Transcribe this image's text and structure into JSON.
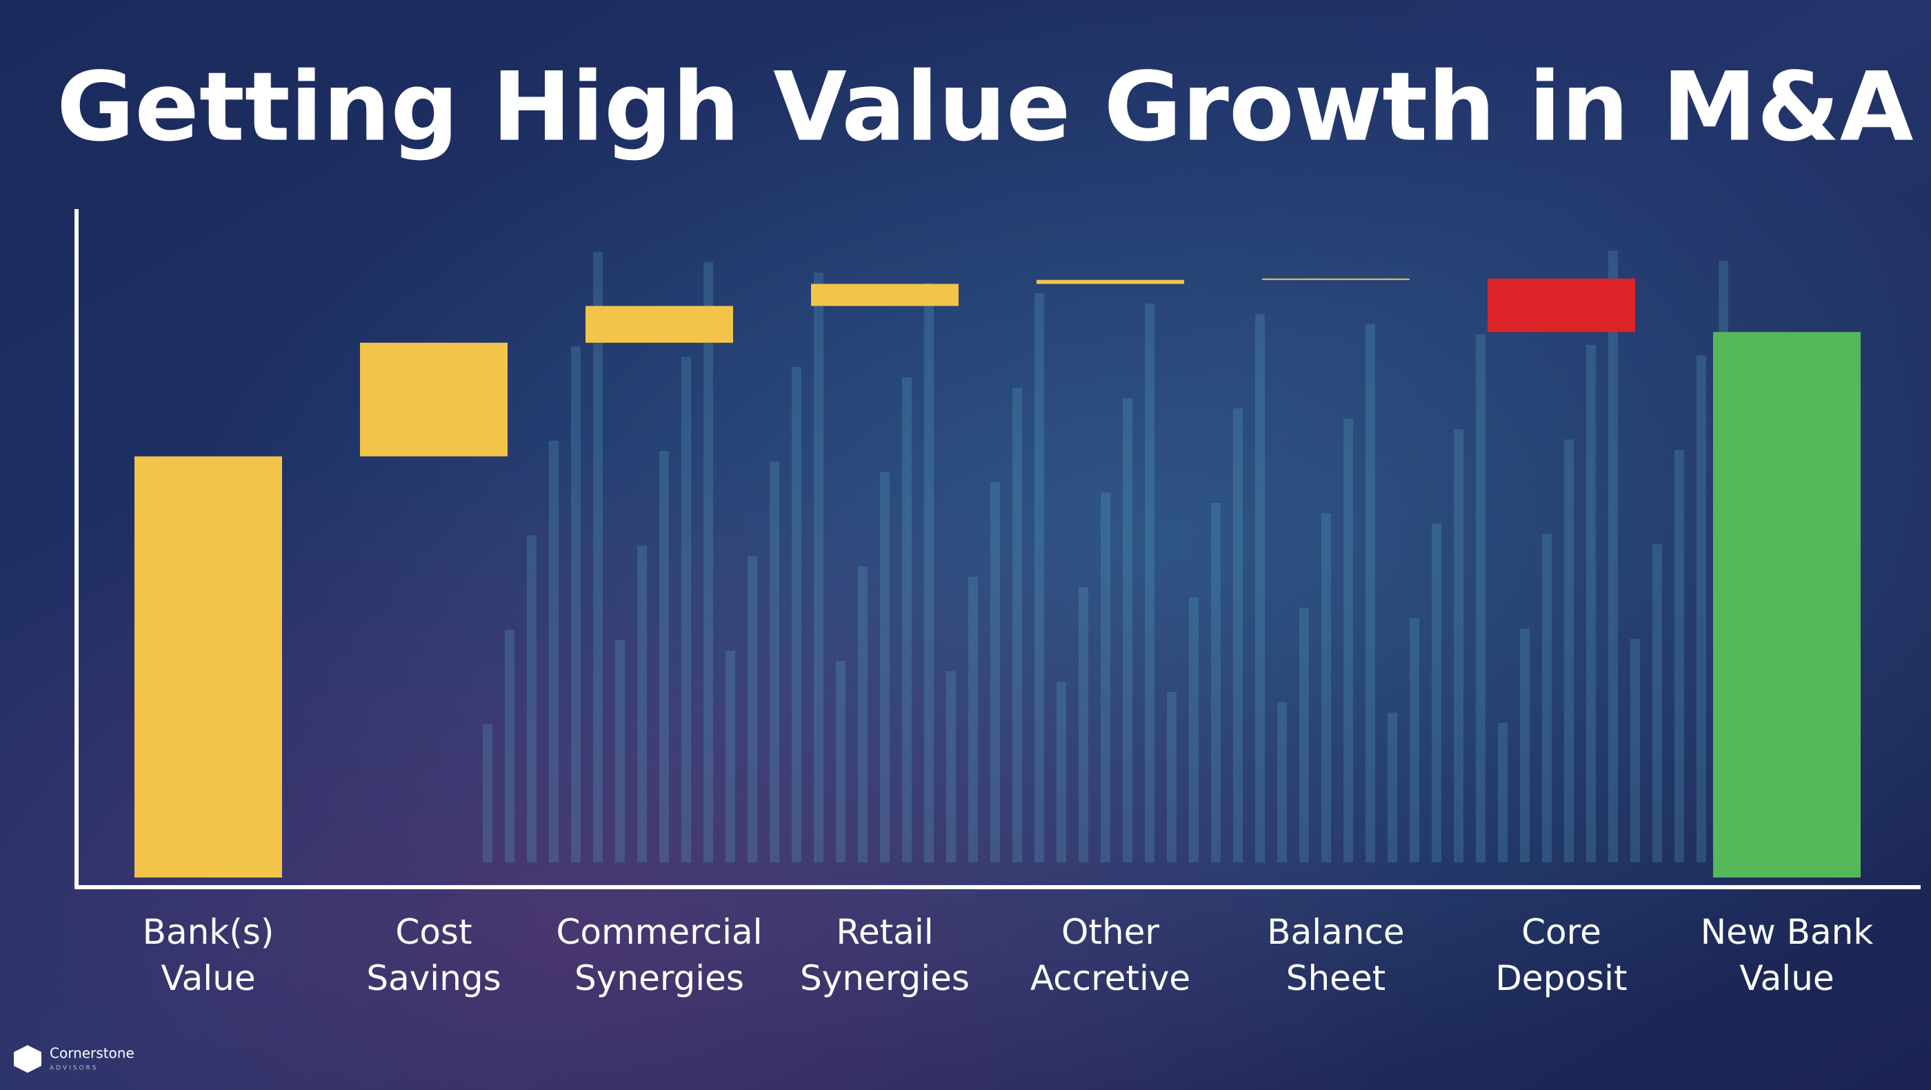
{
  "chart_data": {
    "type": "waterfall",
    "title": "Getting High Value Growth in M&A",
    "categories": [
      "Bank(s)\nValue",
      "Cost\nSavings",
      "Commercial\nSynergies",
      "Retail\nSynergies",
      "Other\nAccretive",
      "Balance\nSheet",
      "Core\nDeposit",
      "New Bank\nValue"
    ],
    "values": [
      63,
      17,
      5.5,
      3.3,
      0.6,
      0.2,
      -8,
      81.6
    ],
    "measures": [
      "absolute",
      "relative",
      "relative",
      "relative",
      "relative",
      "relative",
      "relative",
      "total"
    ],
    "colors": [
      "#f2c44a",
      "#f2c44a",
      "#f2c44a",
      "#f2c44a",
      "#f2c44a",
      "#f2c44a",
      "#dc2428",
      "#55b95a"
    ],
    "ylim": [
      0,
      100
    ]
  },
  "logo": {
    "name": "Cornerstone",
    "tagline": "ADVISORS"
  }
}
